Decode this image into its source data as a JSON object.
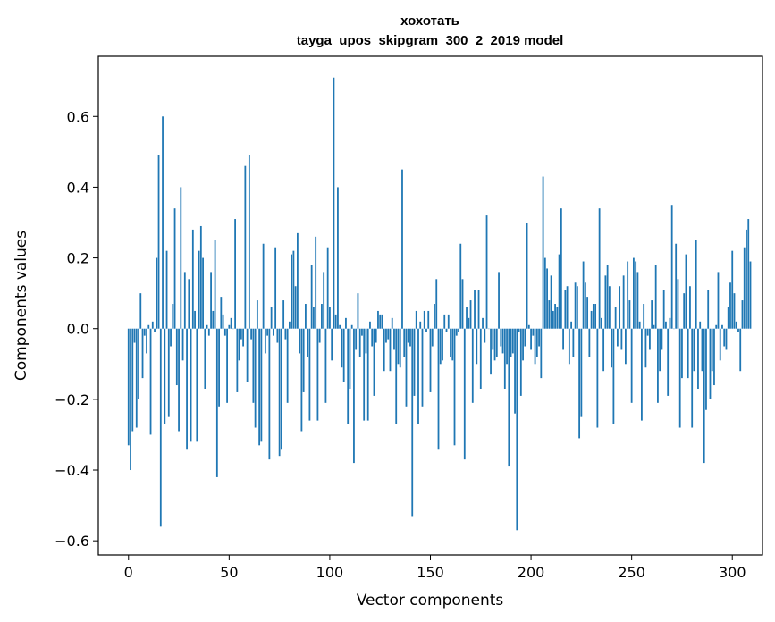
{
  "chart_data": {
    "type": "bar",
    "title_line1": "хохотать",
    "title_line2": "tayga_upos_skipgram_300_2_2019 model",
    "xlabel": "Vector components",
    "ylabel": "Components values",
    "xlim": [
      -15,
      315
    ],
    "ylim": [
      -0.64,
      0.77
    ],
    "xticks": [
      0,
      50,
      100,
      150,
      200,
      250,
      300
    ],
    "xtick_labels": [
      "0",
      "50",
      "100",
      "150",
      "200",
      "250",
      "300"
    ],
    "yticks": [
      -0.6,
      -0.4,
      -0.2,
      0.0,
      0.2,
      0.4,
      0.6
    ],
    "ytick_labels": [
      "−0.6",
      "−0.4",
      "−0.2",
      "0.0",
      "0.2",
      "0.4",
      "0.6"
    ],
    "grid": false,
    "bar_color": "#1f77b4",
    "values": [
      -0.33,
      -0.4,
      -0.29,
      -0.04,
      -0.28,
      -0.2,
      0.1,
      -0.14,
      -0.02,
      -0.07,
      0.01,
      -0.3,
      0.02,
      -0.01,
      0.2,
      0.49,
      -0.56,
      0.6,
      -0.27,
      0.22,
      -0.25,
      -0.05,
      0.07,
      0.34,
      -0.16,
      -0.29,
      0.4,
      -0.09,
      0.16,
      -0.34,
      0.14,
      -0.32,
      0.28,
      0.05,
      -0.32,
      0.22,
      0.29,
      0.2,
      -0.17,
      0.01,
      -0.02,
      0.16,
      0.05,
      0.25,
      -0.42,
      -0.22,
      0.09,
      0.04,
      -0.02,
      -0.21,
      0.01,
      0.03,
      0.0,
      0.31,
      -0.18,
      -0.09,
      -0.03,
      -0.05,
      0.46,
      -0.15,
      0.49,
      -0.03,
      -0.21,
      -0.28,
      0.08,
      -0.33,
      -0.32,
      0.24,
      -0.07,
      -0.02,
      -0.37,
      0.06,
      -0.02,
      0.23,
      -0.04,
      -0.36,
      -0.34,
      0.08,
      -0.03,
      -0.21,
      0.02,
      0.21,
      0.22,
      0.12,
      0.27,
      -0.07,
      -0.29,
      -0.18,
      0.07,
      -0.08,
      -0.26,
      0.18,
      0.06,
      0.26,
      -0.26,
      -0.04,
      0.07,
      0.16,
      -0.21,
      0.23,
      0.06,
      -0.09,
      0.71,
      0.04,
      0.4,
      0.01,
      -0.11,
      -0.15,
      0.03,
      -0.27,
      -0.17,
      0.01,
      -0.38,
      -0.06,
      0.1,
      -0.08,
      -0.02,
      -0.26,
      -0.07,
      -0.26,
      0.02,
      -0.05,
      -0.19,
      -0.04,
      0.05,
      0.04,
      0.04,
      -0.12,
      -0.04,
      -0.03,
      -0.12,
      0.03,
      -0.06,
      -0.27,
      -0.1,
      -0.11,
      0.45,
      -0.08,
      -0.22,
      -0.04,
      -0.05,
      -0.53,
      -0.19,
      0.05,
      -0.27,
      0.02,
      -0.22,
      0.05,
      -0.01,
      0.05,
      -0.18,
      -0.05,
      0.07,
      0.14,
      -0.34,
      -0.1,
      -0.09,
      0.04,
      -0.01,
      0.04,
      -0.08,
      -0.09,
      -0.33,
      -0.02,
      -0.01,
      0.24,
      0.14,
      -0.37,
      0.06,
      0.03,
      0.08,
      -0.21,
      0.11,
      -0.1,
      0.11,
      -0.17,
      0.03,
      -0.04,
      0.32,
      0.0,
      -0.13,
      -0.06,
      -0.09,
      -0.08,
      0.16,
      -0.05,
      -0.07,
      -0.17,
      -0.1,
      -0.39,
      -0.08,
      -0.07,
      -0.24,
      -0.57,
      -0.01,
      -0.19,
      -0.09,
      -0.05,
      0.3,
      0.01,
      -0.06,
      -0.02,
      -0.1,
      -0.08,
      -0.05,
      -0.14,
      0.43,
      0.2,
      0.17,
      0.08,
      0.15,
      0.05,
      0.07,
      0.06,
      0.21,
      0.34,
      -0.06,
      0.11,
      0.12,
      -0.1,
      0.02,
      -0.08,
      0.13,
      0.12,
      -0.31,
      -0.25,
      0.19,
      0.13,
      0.09,
      -0.08,
      0.05,
      0.07,
      0.07,
      -0.28,
      0.34,
      0.03,
      -0.12,
      0.15,
      0.18,
      0.12,
      -0.11,
      -0.27,
      0.06,
      -0.05,
      0.12,
      -0.06,
      0.15,
      -0.1,
      0.19,
      0.08,
      -0.21,
      0.2,
      0.19,
      0.16,
      0.02,
      -0.26,
      0.07,
      -0.11,
      -0.02,
      -0.06,
      0.08,
      0.01,
      0.18,
      -0.21,
      -0.12,
      -0.06,
      0.11,
      0.02,
      -0.19,
      0.03,
      0.35,
      0.0,
      0.24,
      0.14,
      -0.28,
      -0.14,
      0.1,
      0.21,
      -0.14,
      0.12,
      -0.28,
      -0.12,
      0.25,
      -0.17,
      0.02,
      -0.12,
      -0.38,
      -0.23,
      0.11,
      -0.2,
      -0.12,
      -0.16,
      0.01,
      0.16,
      -0.09,
      0.01,
      -0.05,
      -0.06,
      0.06,
      0.13,
      0.22,
      0.1,
      0.02,
      -0.01,
      -0.12,
      0.08,
      0.23,
      0.28,
      0.31,
      0.19
    ]
  }
}
